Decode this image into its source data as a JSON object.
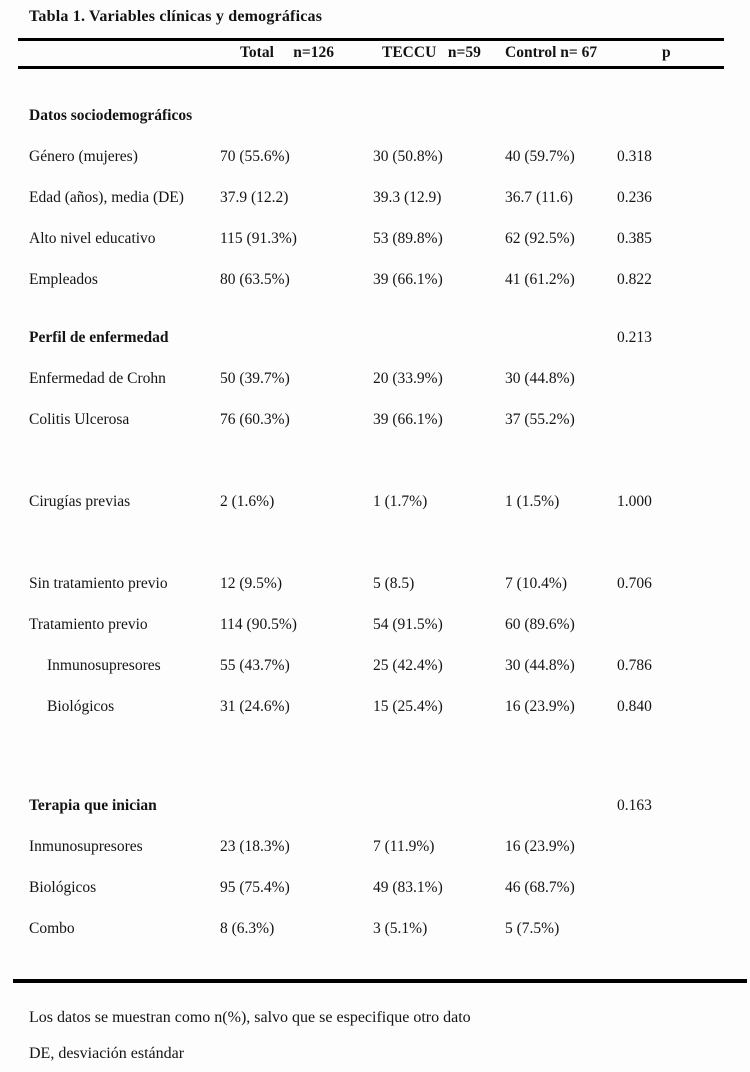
{
  "title": "Tabla 1. Variables clínicas y demográficas",
  "header": {
    "total": "Total     n=126",
    "teccu": "TECCU   n=59",
    "control": "Control n= 67",
    "p": "p"
  },
  "rows": [
    {
      "type": "section",
      "label": "Datos sociodemográficos",
      "total": "",
      "teccu": "",
      "control": "",
      "p": ""
    },
    {
      "type": "data",
      "label": "Género (mujeres)",
      "total": "70 (55.6%)",
      "teccu": "30 (50.8%)",
      "control": "40 (59.7%)",
      "p": "0.318"
    },
    {
      "type": "data",
      "label": "Edad (años), media (DE)",
      "total": "37.9 (12.2)",
      "teccu": "39.3 (12.9)",
      "control": "36.7 (11.6)",
      "p": "0.236"
    },
    {
      "type": "data",
      "label": "Alto nivel educativo",
      "total": "115 (91.3%)",
      "teccu": "53 (89.8%)",
      "control": "62 (92.5%)",
      "p": "0.385"
    },
    {
      "type": "data",
      "label": "Empleados",
      "total": "80 (63.5%)",
      "teccu": "39 (66.1%)",
      "control": "41 (61.2%)",
      "p": "0.822"
    },
    {
      "type": "section",
      "label": "Perfil de enfermedad",
      "total": "",
      "teccu": "",
      "control": "",
      "p": "0.213"
    },
    {
      "type": "data",
      "label": "Enfermedad de Crohn",
      "total": "50 (39.7%)",
      "teccu": "20 (33.9%)",
      "control": "30 (44.8%)",
      "p": ""
    },
    {
      "type": "data",
      "label": "Colitis Ulcerosa",
      "total": "76 (60.3%)",
      "teccu": "39 (66.1%)",
      "control": "37 (55.2%)",
      "p": ""
    },
    {
      "type": "spacer",
      "label": "",
      "total": "",
      "teccu": "",
      "control": "",
      "p": ""
    },
    {
      "type": "data",
      "label": "Cirugías previas",
      "total": "2 (1.6%)",
      "teccu": "1 (1.7%)",
      "control": "1 (1.5%)",
      "p": "1.000"
    },
    {
      "type": "spacer",
      "label": "",
      "total": "",
      "teccu": "",
      "control": "",
      "p": ""
    },
    {
      "type": "data",
      "label": "Sin tratamiento previo",
      "total": "12 (9.5%)",
      "teccu": "5 (8.5)",
      "control": "7 (10.4%)",
      "p": "0.706"
    },
    {
      "type": "data",
      "label": "Tratamiento previo",
      "total": "114 (90.5%)",
      "teccu": "54 (91.5%)",
      "control": "60 (89.6%)",
      "p": ""
    },
    {
      "type": "data-indent",
      "label": "Inmunosupresores",
      "total": "55 (43.7%)",
      "teccu": "25 (42.4%)",
      "control": "30 (44.8%)",
      "p": "0.786"
    },
    {
      "type": "data-indent",
      "label": "Biológicos",
      "total": "31 (24.6%)",
      "teccu": "15 (25.4%)",
      "control": "16 (23.9%)",
      "p": "0.840"
    },
    {
      "type": "spacer",
      "label": "",
      "total": "",
      "teccu": "",
      "control": "",
      "p": ""
    },
    {
      "type": "section",
      "label": "Terapia que inician",
      "total": "",
      "teccu": "",
      "control": "",
      "p": "0.163"
    },
    {
      "type": "data",
      "label": "Inmunosupresores",
      "total": "23 (18.3%)",
      "teccu": "7 (11.9%)",
      "control": "16 (23.9%)",
      "p": ""
    },
    {
      "type": "data",
      "label": "Biológicos",
      "total": "95 (75.4%)",
      "teccu": "49 (83.1%)",
      "control": "46 (68.7%)",
      "p": ""
    },
    {
      "type": "data",
      "label": "Combo",
      "total": "8 (6.3%)",
      "teccu": "3 (5.1%)",
      "control": "5 (7.5%)",
      "p": ""
    }
  ],
  "footnotes": [
    "Los datos se muestran como n(%), salvo que se especifique otro dato",
    "DE, desviación estándar"
  ]
}
